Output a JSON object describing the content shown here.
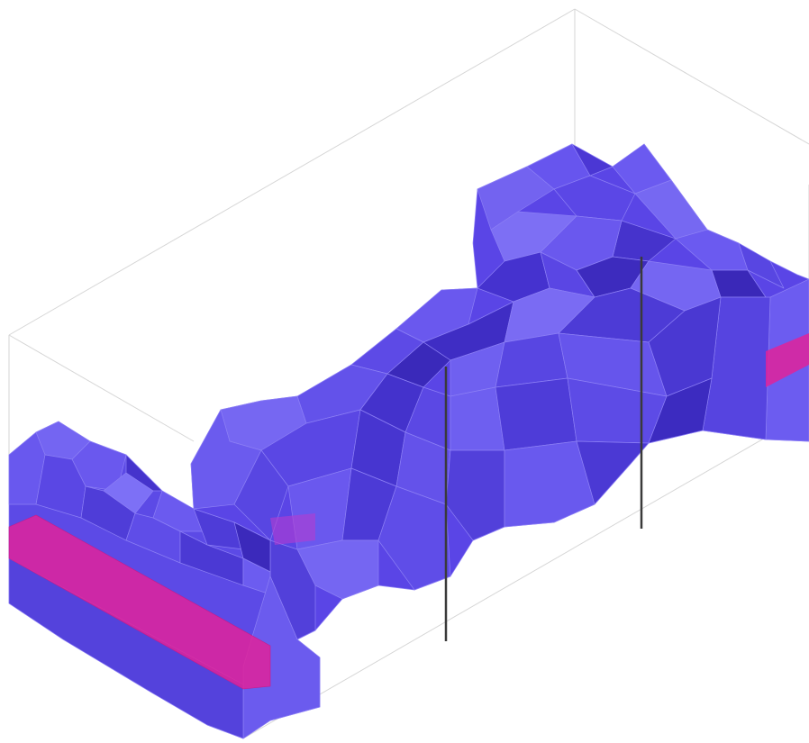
{
  "scene": {
    "type": "3d-isosurface-view",
    "colors": {
      "background": "#ffffff",
      "bounding_box": "#d6d6d6",
      "surface_light": "#7a68f5",
      "surface_mid": "#5a45e6",
      "surface_dark": "#3f2bc4",
      "surface_shadow": "#2e1f96",
      "high_value_band": "#e0229a",
      "well_line": "#3a3a3a"
    },
    "objects": [
      "bounding-box",
      "isosurface-body",
      "high-value-band",
      "well-trajectory"
    ],
    "well_count": 2
  }
}
